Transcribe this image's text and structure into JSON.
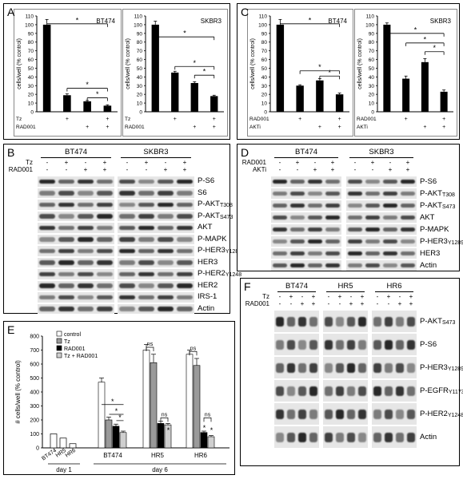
{
  "panels": {
    "A": {
      "label": "A",
      "charts": [
        {
          "title": "BT474",
          "ylabel": "cells/well (% control)",
          "ymax": 110,
          "ticks": [
            0,
            10,
            20,
            30,
            40,
            50,
            60,
            70,
            80,
            90,
            100,
            110
          ],
          "values": [
            100,
            19,
            12,
            7
          ],
          "err": [
            6,
            1.5,
            1,
            1
          ],
          "rows": [
            {
              "name": "Tz",
              "marks": [
                "",
                "+",
                "",
                "+"
              ]
            },
            {
              "name": "RAD001",
              "marks": [
                "",
                "",
                "+",
                "+"
              ]
            }
          ],
          "sig": [
            {
              "from": 0,
              "to": 3,
              "y": 101
            },
            {
              "from": 1,
              "to": 3,
              "y": 27
            },
            {
              "from": 2,
              "to": 3,
              "y": 16
            }
          ]
        },
        {
          "title": "SKBR3",
          "ylabel": "cells/well (% control)",
          "ymax": 110,
          "ticks": [
            0,
            10,
            20,
            30,
            40,
            50,
            60,
            70,
            80,
            90,
            100,
            110
          ],
          "values": [
            100,
            45,
            33,
            18
          ],
          "err": [
            4,
            1.5,
            1.5,
            1
          ],
          "rows": [
            {
              "name": "Tz",
              "marks": [
                "",
                "+",
                "",
                "+"
              ]
            },
            {
              "name": "RAD001",
              "marks": [
                "",
                "",
                "+",
                "+"
              ]
            }
          ],
          "sig": [
            {
              "from": 0,
              "to": 3,
              "y": 86
            },
            {
              "from": 1,
              "to": 3,
              "y": 52
            },
            {
              "from": 2,
              "to": 3,
              "y": 42
            }
          ]
        }
      ]
    },
    "C": {
      "label": "C",
      "charts": [
        {
          "title": "BT474",
          "ylabel": "cells/well (% control)",
          "ymax": 110,
          "ticks": [
            0,
            10,
            20,
            30,
            40,
            50,
            60,
            70,
            80,
            90,
            100,
            110
          ],
          "values": [
            100,
            30,
            36,
            20
          ],
          "err": [
            6,
            1,
            2,
            1.5
          ],
          "rows": [
            {
              "name": "RAD001",
              "marks": [
                "",
                "+",
                "",
                "+"
              ]
            },
            {
              "name": "AKTi",
              "marks": [
                "",
                "",
                "+",
                "+"
              ]
            }
          ],
          "sig": [
            {
              "from": 0,
              "to": 3,
              "y": 101
            },
            {
              "from": 1,
              "to": 3,
              "y": 47
            },
            {
              "from": 2,
              "to": 3,
              "y": 41
            }
          ]
        },
        {
          "title": "SKBR3",
          "ylabel": "cells/well (% control)",
          "ymax": 110,
          "ticks": [
            0,
            10,
            20,
            30,
            40,
            50,
            60,
            70,
            80,
            90,
            100,
            110
          ],
          "values": [
            100,
            38,
            57,
            23
          ],
          "err": [
            2,
            3,
            4,
            2
          ],
          "rows": [
            {
              "name": "RAD001",
              "marks": [
                "",
                "+",
                "",
                "+"
              ]
            },
            {
              "name": "AKTi",
              "marks": [
                "",
                "",
                "+",
                "+"
              ]
            }
          ],
          "sig": [
            {
              "from": 0,
              "to": 3,
              "y": 90
            },
            {
              "from": 1,
              "to": 3,
              "y": 79
            },
            {
              "from": 2,
              "to": 3,
              "y": 69
            }
          ]
        }
      ]
    },
    "B": {
      "label": "B",
      "groups": [
        "BT474",
        "SKBR3"
      ],
      "treat": [
        {
          "name": "Tz",
          "marks": [
            "-",
            "+",
            "-",
            "+"
          ]
        },
        {
          "name": "RAD001",
          "marks": [
            "-",
            "-",
            "+",
            "+"
          ]
        }
      ],
      "bands": [
        {
          "name": "P-S6",
          "sub": ""
        },
        {
          "name": "S6",
          "sub": ""
        },
        {
          "name": "P-AKT",
          "sub": "T308"
        },
        {
          "name": "P-AKT",
          "sub": "S473"
        },
        {
          "name": "AKT",
          "sub": ""
        },
        {
          "name": "P-MAPK",
          "sub": ""
        },
        {
          "name": "P-HER3",
          "sub": "Y1289"
        },
        {
          "name": "HER3",
          "sub": ""
        },
        {
          "name": "P-HER2",
          "sub": "Y1248"
        },
        {
          "name": "HER2",
          "sub": ""
        },
        {
          "name": "IRS-1",
          "sub": ""
        },
        {
          "name": "Actin",
          "sub": ""
        }
      ]
    },
    "D": {
      "label": "D",
      "groups": [
        "BT474",
        "SKBR3"
      ],
      "treat": [
        {
          "name": "RAD001",
          "marks": [
            "-",
            "+",
            "-",
            "+"
          ]
        },
        {
          "name": "AKTi",
          "marks": [
            "-",
            "-",
            "+",
            "+"
          ]
        }
      ],
      "bands": [
        {
          "name": "P-S6",
          "sub": ""
        },
        {
          "name": "P-AKT",
          "sub": "T308"
        },
        {
          "name": "P-AKT",
          "sub": "S473"
        },
        {
          "name": "AKT",
          "sub": ""
        },
        {
          "name": "P-MAPK",
          "sub": ""
        },
        {
          "name": "P-HER3",
          "sub": "Y1289"
        },
        {
          "name": "HER3",
          "sub": ""
        },
        {
          "name": "Actin",
          "sub": ""
        }
      ]
    },
    "E": {
      "label": "E",
      "ylabel": "# cells/well (% control)",
      "ymax": 800,
      "ticks": [
        0,
        100,
        200,
        300,
        400,
        500,
        600,
        700,
        800
      ],
      "legend": [
        "control",
        "Tz",
        "RAD001",
        "Tz + RAD001"
      ],
      "colors": [
        "#ffffff",
        "#9a9a9a",
        "#000000",
        "#cfcfcf"
      ],
      "day1": {
        "categories": [
          "BT474",
          "HR5",
          "HR6"
        ],
        "values": [
          100,
          70,
          30
        ],
        "label": "day 1"
      },
      "day6": {
        "label": "day 6",
        "groups": [
          {
            "name": "BT474",
            "values": [
              470,
              200,
              155,
              110
            ],
            "err": [
              30,
              20,
              15,
              10
            ]
          },
          {
            "name": "HR5",
            "values": [
              700,
              610,
              175,
              165
            ],
            "err": [
              40,
              60,
              15,
              10
            ]
          },
          {
            "name": "HR6",
            "values": [
              670,
              590,
              110,
              80
            ],
            "err": [
              30,
              50,
              10,
              8
            ]
          }
        ]
      },
      "annot": {
        "star": "*",
        "ns": "ns"
      }
    },
    "F": {
      "label": "F",
      "groups": [
        "BT474",
        "HR5",
        "HR6"
      ],
      "treat": [
        {
          "name": "Tz",
          "marks": [
            "-",
            "+",
            "-",
            "+"
          ]
        },
        {
          "name": "RAD001",
          "marks": [
            "-",
            "-",
            "+",
            "+"
          ]
        }
      ],
      "bands": [
        {
          "name": "P-AKT",
          "sub": "S473"
        },
        {
          "name": "P-S6",
          "sub": ""
        },
        {
          "name": "P-HER3",
          "sub": "Y1289"
        },
        {
          "name": "P-EGFR",
          "sub": "Y1173"
        },
        {
          "name": "P-HER2",
          "sub": "Y1248"
        },
        {
          "name": "Actin",
          "sub": ""
        }
      ]
    }
  }
}
